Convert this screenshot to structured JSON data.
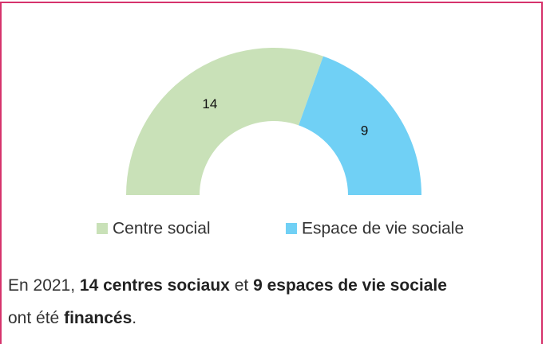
{
  "chart_data": {
    "type": "donut",
    "categories": [
      "Centre social",
      "Espace de vie sociale"
    ],
    "values": [
      14,
      9
    ],
    "colors": [
      "#c9e1b8",
      "#70d0f5"
    ],
    "caption": [
      "En 2021,",
      "14 centres sociaux",
      "et",
      "9 espaces de vie sociale",
      "ont été",
      "financés",
      "."
    ]
  }
}
